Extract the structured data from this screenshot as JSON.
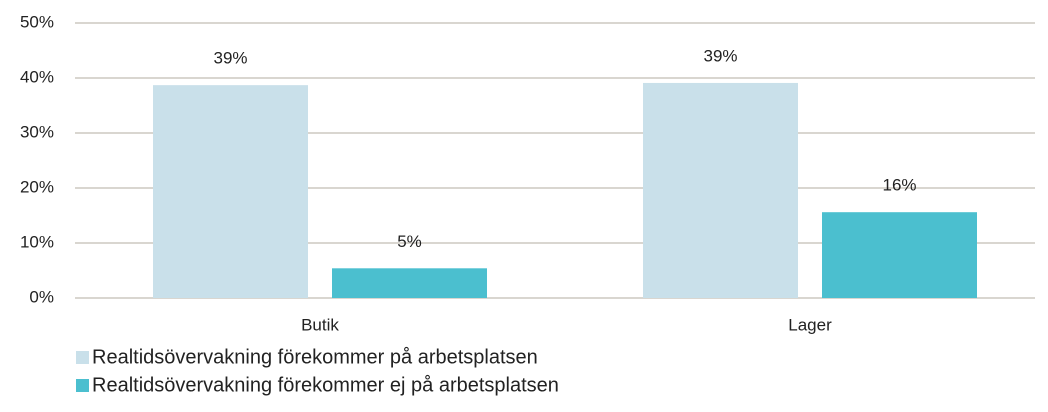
{
  "chart_data": {
    "type": "bar",
    "categories": [
      "Butik",
      "Lager"
    ],
    "series": [
      {
        "name": "Realtidsövervakning förekommer på arbetsplatsen",
        "color": "#c9e0ea",
        "values": [
          38.7,
          39.1
        ],
        "value_labels": [
          "39%",
          "39%"
        ]
      },
      {
        "name": "Realtidsövervakning förekommer ej på arbetsplatsen",
        "color": "#4bbfcf",
        "values": [
          5.4,
          15.6
        ],
        "value_labels": [
          "5%",
          "16%"
        ]
      }
    ],
    "ylim": [
      0,
      50
    ],
    "yticks": [
      {
        "value": 0,
        "label": "0%"
      },
      {
        "value": 10,
        "label": "10%"
      },
      {
        "value": 20,
        "label": "20%"
      },
      {
        "value": 30,
        "label": "30%"
      },
      {
        "value": 40,
        "label": "40%"
      },
      {
        "value": 50,
        "label": "50%"
      }
    ],
    "grid": true,
    "legend": "bottom-left"
  }
}
